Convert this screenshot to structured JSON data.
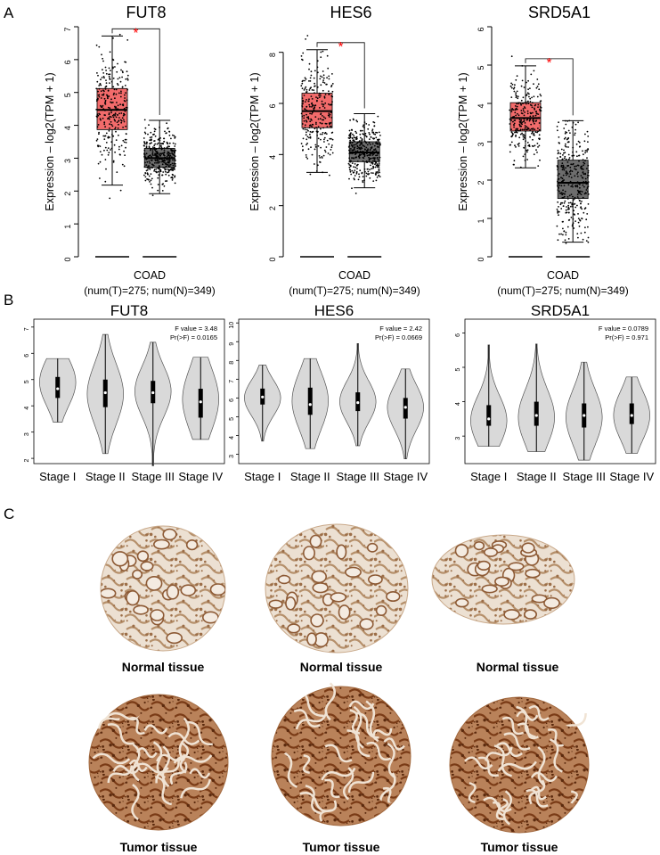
{
  "panels": {
    "A": "A",
    "B": "B",
    "C": "C"
  },
  "chart_data": [
    {
      "type": "box",
      "title": "FUT8",
      "ylabel": "Expression – log2(TPM + 1)",
      "ylim": [
        0,
        7
      ],
      "yticks": [
        0,
        1,
        2,
        3,
        4,
        5,
        6,
        7
      ],
      "xlabel": "COAD",
      "xsublabel": "(num(T)=275; num(N)=349)",
      "significance": "*",
      "groups": [
        {
          "group": "T",
          "color": "#f26b6b",
          "q1": 3.87,
          "median": 4.47,
          "q3": 5.12,
          "whisker_low": 2.18,
          "whisker_high": 6.72,
          "n": 275,
          "pt_min": 1.72,
          "pt_max": 6.85
        },
        {
          "group": "N",
          "color": "#6d6d6d",
          "q1": 2.72,
          "median": 3.0,
          "q3": 3.3,
          "whisker_low": 1.92,
          "whisker_high": 4.15,
          "n": 349,
          "pt_min": 1.52,
          "pt_max": 4.45
        }
      ]
    },
    {
      "type": "box",
      "title": "HES6",
      "ylabel": "Expression – log2(TPM + 1)",
      "ylim": [
        0,
        9
      ],
      "yticks": [
        0,
        2,
        4,
        6,
        8
      ],
      "xlabel": "COAD",
      "xsublabel": "(num(T)=275; num(N)=349)",
      "significance": "*",
      "groups": [
        {
          "group": "T",
          "color": "#f26b6b",
          "q1": 5.05,
          "median": 5.7,
          "q3": 6.4,
          "whisker_low": 3.3,
          "whisker_high": 8.1,
          "n": 275,
          "pt_min": 2.75,
          "pt_max": 8.9
        },
        {
          "group": "N",
          "color": "#6d6d6d",
          "q1": 3.72,
          "median": 4.08,
          "q3": 4.5,
          "whisker_low": 2.7,
          "whisker_high": 5.6,
          "n": 349,
          "pt_min": 1.75,
          "pt_max": 5.75
        }
      ]
    },
    {
      "type": "box",
      "title": "SRD5A1",
      "ylabel": "Expression – log2(TPM + 1)",
      "ylim": [
        0,
        6
      ],
      "yticks": [
        0,
        1,
        2,
        3,
        4,
        5,
        6
      ],
      "xlabel": "COAD",
      "xsublabel": "(num(T)=275; num(N)=349)",
      "significance": "*",
      "groups": [
        {
          "group": "T",
          "color": "#f26b6b",
          "q1": 3.28,
          "median": 3.62,
          "q3": 4.02,
          "whisker_low": 2.32,
          "whisker_high": 4.98,
          "n": 275,
          "pt_min": 2.3,
          "pt_max": 5.72
        },
        {
          "group": "N",
          "color": "#6d6d6d",
          "q1": 1.52,
          "median": 1.93,
          "q3": 2.52,
          "whisker_low": 0.38,
          "whisker_high": 3.55,
          "n": 349,
          "pt_min": 0.35,
          "pt_max": 3.55
        }
      ]
    },
    {
      "type": "violin",
      "title": "FUT8",
      "stats": [
        "F value = 3.48",
        "Pr(>F) = 0.0165"
      ],
      "ylim": [
        1.8,
        7.3
      ],
      "yticks": [
        2,
        3,
        4,
        5,
        6,
        7
      ],
      "categories": [
        "Stage I",
        "Stage II",
        "Stage III",
        "Stage IV"
      ],
      "violins": [
        {
          "min": 3.38,
          "max": 5.8,
          "q1": 4.3,
          "median": 4.65,
          "q3": 5.1,
          "mode": 4.9
        },
        {
          "min": 2.18,
          "max": 6.72,
          "q1": 3.95,
          "median": 4.5,
          "q3": 5.0,
          "mode": 4.45
        },
        {
          "min": 1.72,
          "max": 6.42,
          "q1": 4.1,
          "median": 4.5,
          "q3": 4.95,
          "mode": 4.55
        },
        {
          "min": 2.72,
          "max": 5.85,
          "q1": 3.55,
          "median": 4.15,
          "q3": 4.65,
          "mode": 4.25
        }
      ]
    },
    {
      "type": "violin",
      "title": "HES6",
      "stats": [
        "F value = 2.42",
        "Pr(>F) = 0.0669"
      ],
      "ylim": [
        2.5,
        10.2
      ],
      "yticks": [
        3,
        4,
        5,
        6,
        7,
        8,
        9,
        10
      ],
      "categories": [
        "Stage I",
        "Stage II",
        "Stage III",
        "Stage IV"
      ],
      "violins": [
        {
          "min": 3.7,
          "max": 7.75,
          "q1": 5.65,
          "median": 6.05,
          "q3": 6.5,
          "mode": 6.0
        },
        {
          "min": 3.3,
          "max": 8.1,
          "q1": 5.1,
          "median": 5.65,
          "q3": 6.55,
          "mode": 5.85
        },
        {
          "min": 3.45,
          "max": 8.9,
          "q1": 5.3,
          "median": 5.75,
          "q3": 6.3,
          "mode": 5.8
        },
        {
          "min": 2.75,
          "max": 7.55,
          "q1": 4.9,
          "median": 5.5,
          "q3": 6.0,
          "mode": 5.5
        }
      ]
    },
    {
      "type": "violin",
      "title": "SRD5A1",
      "stats": [
        "F value = 0.0789",
        "Pr(>F) = 0.971"
      ],
      "ylim": [
        2.2,
        6.4
      ],
      "yticks": [
        3,
        4,
        5,
        6
      ],
      "categories": [
        "Stage I",
        "Stage II",
        "Stage III",
        "Stage IV"
      ],
      "violins": [
        {
          "min": 2.7,
          "max": 5.65,
          "q1": 3.3,
          "median": 3.5,
          "q3": 3.9,
          "mode": 3.45
        },
        {
          "min": 2.55,
          "max": 5.68,
          "q1": 3.3,
          "median": 3.6,
          "q3": 4.0,
          "mode": 3.55
        },
        {
          "min": 2.3,
          "max": 5.15,
          "q1": 3.25,
          "median": 3.6,
          "q3": 3.95,
          "mode": 3.55
        },
        {
          "min": 2.5,
          "max": 4.72,
          "q1": 3.35,
          "median": 3.6,
          "q3": 3.95,
          "mode": 3.6
        }
      ]
    }
  ],
  "tissue_labels": {
    "normal": [
      "Normal tissue",
      "Normal tissue",
      "Normal tissue"
    ],
    "tumor": [
      "Tumor tissue",
      "Tumor tissue",
      "Tumor tissue"
    ]
  },
  "colors": {
    "tumor_box": "#f26b6b",
    "normal_box": "#6d6d6d",
    "significance": "#ff0000",
    "violin_fill": "#d9d9d9",
    "tissue_light": "#d8c2ae",
    "tissue_dark": "#8a4a24"
  }
}
